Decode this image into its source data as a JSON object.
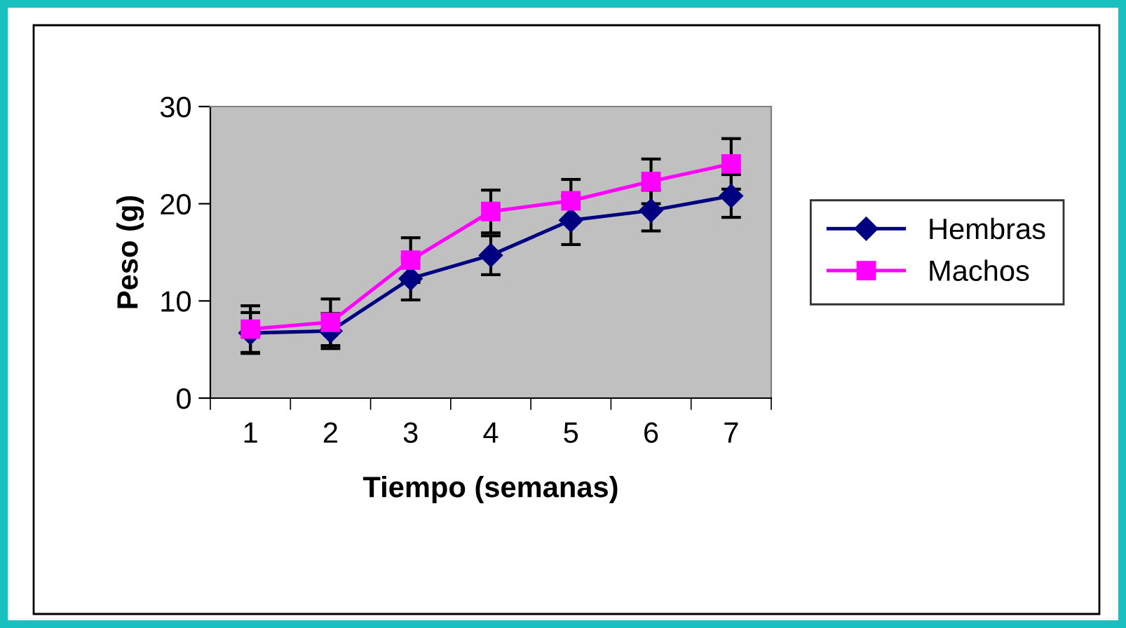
{
  "chart_data": {
    "type": "line",
    "xlabel": "Tiempo (semanas)",
    "ylabel": "Peso (g)",
    "categories": [
      "1",
      "2",
      "3",
      "4",
      "5",
      "6",
      "7"
    ],
    "ylim": [
      0,
      30
    ],
    "yticks": [
      0,
      10,
      20,
      30
    ],
    "grid": false,
    "legend": "right",
    "line_style": "solid",
    "series": [
      {
        "name": "Hembras",
        "color": "#000080",
        "marker": "diamond",
        "values": [
          6.7,
          6.9,
          12.3,
          14.7,
          18.3,
          19.3,
          20.8
        ],
        "errors": [
          2.1,
          1.8,
          2.2,
          2.0,
          2.5,
          2.1,
          2.2
        ]
      },
      {
        "name": "Machos",
        "color": "#ff00ff",
        "marker": "square",
        "values": [
          7.1,
          7.8,
          14.2,
          19.2,
          20.3,
          22.3,
          24.1
        ],
        "errors": [
          2.4,
          2.4,
          2.3,
          2.2,
          2.2,
          2.3,
          2.6
        ]
      }
    ]
  }
}
